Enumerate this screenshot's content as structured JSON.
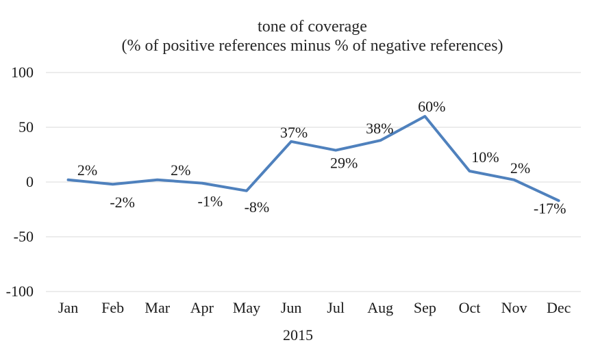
{
  "chart_data": {
    "type": "line",
    "title": "tone of coverage",
    "subtitle": "(% of positive references minus % of negative references)",
    "xlabel": "2015",
    "ylabel": "",
    "categories": [
      "Jan",
      "Feb",
      "Mar",
      "Apr",
      "May",
      "Jun",
      "Jul",
      "Aug",
      "Sep",
      "Oct",
      "Nov",
      "Dec"
    ],
    "series": [
      {
        "name": "tone of coverage",
        "values": [
          2,
          -2,
          2,
          -1,
          -8,
          37,
          29,
          38,
          60,
          10,
          2,
          -17
        ]
      }
    ],
    "data_labels": [
      "2%",
      "-2%",
      "2%",
      "-1%",
      "-8%",
      "37%",
      "29%",
      "38%",
      "60%",
      "10%",
      "2%",
      "-17%"
    ],
    "label_positions": [
      "above",
      "below",
      "above",
      "below",
      "below",
      "above",
      "below",
      "above",
      "above",
      "above",
      "above",
      "below"
    ],
    "ylim": [
      -100,
      100
    ],
    "yticks": [
      100,
      50,
      0,
      -50,
      -100
    ],
    "ytick_labels": [
      "100",
      "50",
      "0",
      "-50",
      "-100"
    ],
    "grid": true,
    "legend": "none",
    "colors": {
      "line": "#4F81BD",
      "gridline": "#D9D9D9",
      "text": "#1a1a1a",
      "background": "#ffffff"
    }
  }
}
